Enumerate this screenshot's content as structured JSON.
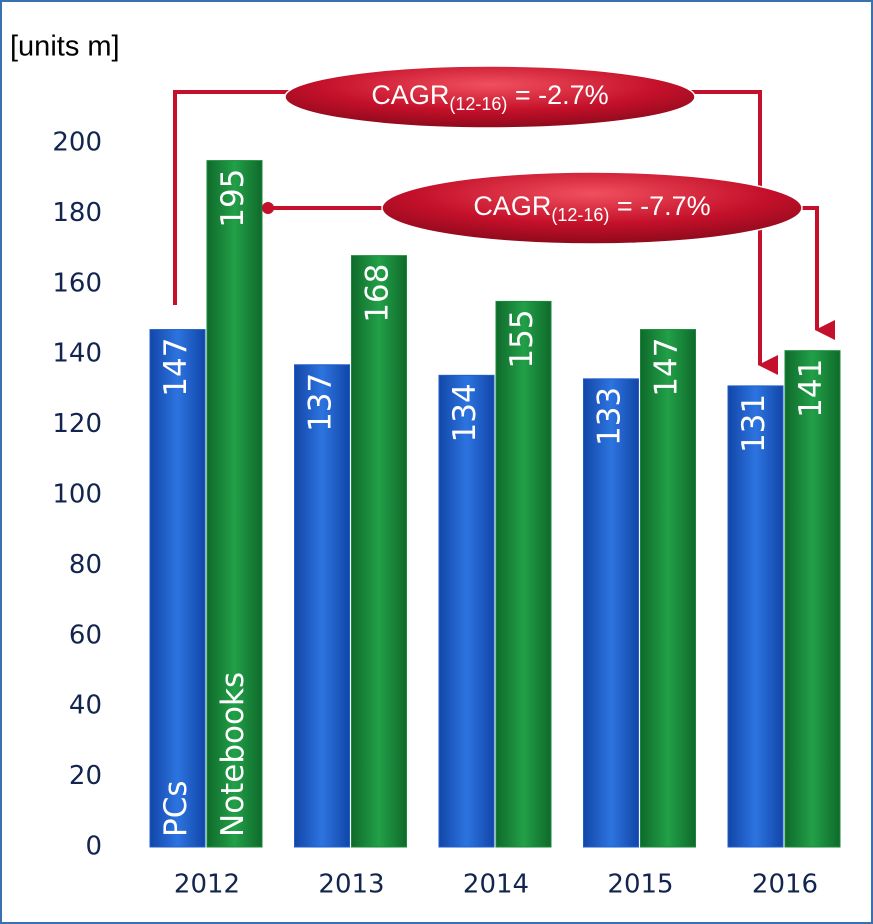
{
  "chart_data": {
    "type": "bar",
    "y_label": "[units m]",
    "categories": [
      "2012",
      "2013",
      "2014",
      "2015",
      "2016"
    ],
    "series": [
      {
        "name": "PCs",
        "color": "#1f5fc9",
        "values": [
          147,
          137,
          134,
          133,
          131
        ]
      },
      {
        "name": "Notebooks",
        "color": "#178a3a",
        "values": [
          195,
          168,
          155,
          147,
          141
        ]
      }
    ],
    "ylim": [
      0,
      200
    ],
    "yticks": [
      0,
      20,
      40,
      60,
      80,
      100,
      120,
      140,
      160,
      180,
      200
    ],
    "grid": false,
    "annotations": [
      {
        "text": "CAGR",
        "sub": "(12-16)",
        "rest": " = -2.7%"
      },
      {
        "text": "CAGR",
        "sub": "(12-16)",
        "rest": " = -7.7%"
      }
    ]
  }
}
